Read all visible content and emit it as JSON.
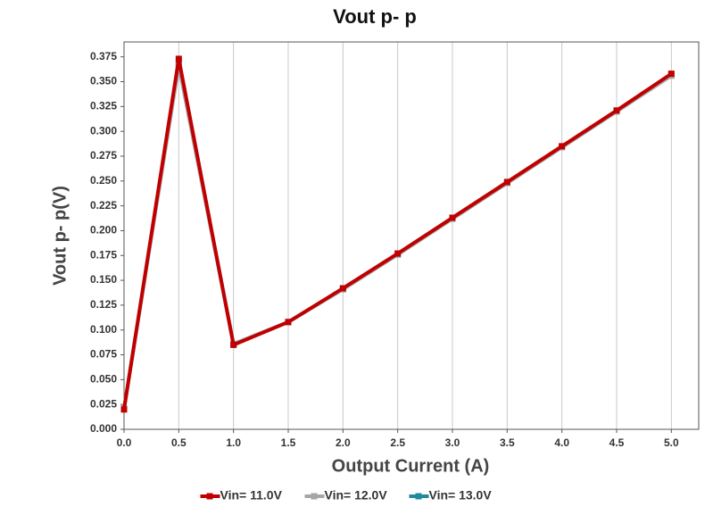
{
  "chart_data": {
    "type": "line",
    "title": "Vout p- p",
    "xlabel": "Output Current (A)",
    "ylabel": "Vout p- p(V)",
    "x": [
      0,
      0.5,
      1,
      1.5,
      2,
      2.5,
      3,
      3.5,
      4,
      4.5,
      5
    ],
    "series": [
      {
        "name": "Vin= 11.0V",
        "color": "#c00000",
        "values": [
          0.02,
          0.373,
          0.085,
          0.108,
          0.142,
          0.177,
          0.213,
          0.249,
          0.285,
          0.321,
          0.358
        ]
      },
      {
        "name": "Vin= 12.0V",
        "color": "#a6a6a6",
        "values": [
          0.021,
          0.366,
          0.086,
          0.108,
          0.141,
          0.176,
          0.212,
          0.248,
          0.284,
          0.32,
          0.356
        ]
      },
      {
        "name": "Vin= 13.0V",
        "color": "#1f8a9c",
        "values": [
          0.021,
          0.368,
          0.086,
          0.108,
          0.141,
          0.176,
          0.212,
          0.248,
          0.284,
          0.32,
          0.357
        ]
      }
    ],
    "xlim": [
      0,
      5.25
    ],
    "ylim": [
      0,
      0.39
    ],
    "xticks": [
      {
        "value": 0,
        "label": "0.0"
      },
      {
        "value": 0.5,
        "label": "0.5"
      },
      {
        "value": 1,
        "label": "1.0"
      },
      {
        "value": 1.5,
        "label": "1.5"
      },
      {
        "value": 2,
        "label": "2.0"
      },
      {
        "value": 2.5,
        "label": "2.5"
      },
      {
        "value": 3,
        "label": "3.0"
      },
      {
        "value": 3.5,
        "label": "3.5"
      },
      {
        "value": 4,
        "label": "4.0"
      },
      {
        "value": 4.5,
        "label": "4.5"
      },
      {
        "value": 5,
        "label": "5.0"
      }
    ],
    "yticks": [
      {
        "value": 0,
        "label": "0.000"
      },
      {
        "value": 0.025,
        "label": "0.025"
      },
      {
        "value": 0.05,
        "label": "0.050"
      },
      {
        "value": 0.075,
        "label": "0.075"
      },
      {
        "value": 0.1,
        "label": "0.100"
      },
      {
        "value": 0.125,
        "label": "0.125"
      },
      {
        "value": 0.15,
        "label": "0.150"
      },
      {
        "value": 0.175,
        "label": "0.175"
      },
      {
        "value": 0.2,
        "label": "0.200"
      },
      {
        "value": 0.225,
        "label": "0.225"
      },
      {
        "value": 0.25,
        "label": "0.250"
      },
      {
        "value": 0.275,
        "label": "0.275"
      },
      {
        "value": 0.3,
        "label": "0.300"
      },
      {
        "value": 0.325,
        "label": "0.325"
      },
      {
        "value": 0.35,
        "label": "0.350"
      },
      {
        "value": 0.375,
        "label": "0.375"
      }
    ],
    "grid": "x",
    "legend": "bottom"
  }
}
